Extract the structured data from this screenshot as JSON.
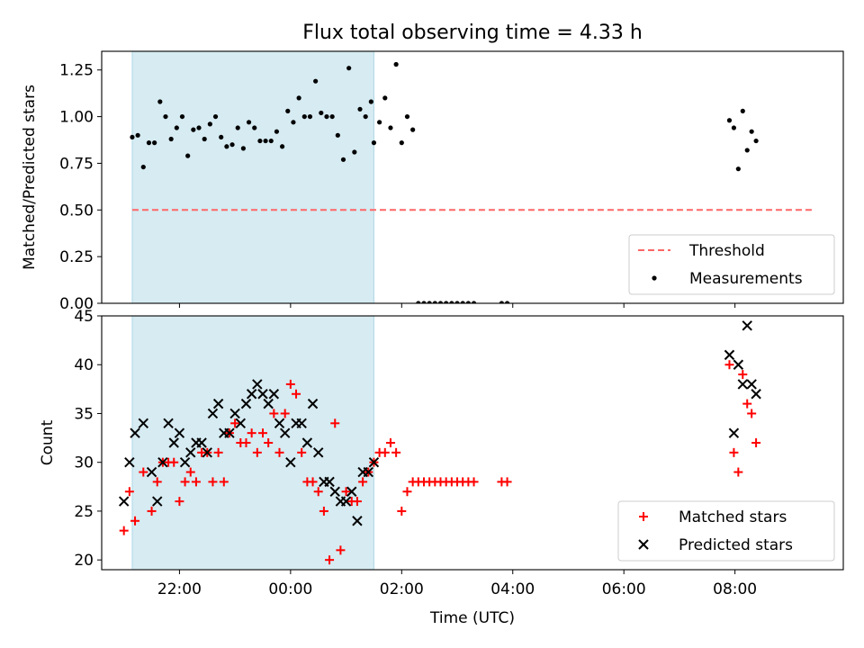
{
  "title": "Flux total observing time = 4.33 h",
  "xlabel": "Time (UTC)",
  "x_ticks": [
    "22:00",
    "00:00",
    "02:00",
    "04:00",
    "06:00",
    "08:00"
  ],
  "x_tick_hours": [
    22,
    24,
    26,
    28,
    30,
    32
  ],
  "colors": {
    "shade": "#add8e6",
    "threshold": "#ff6666",
    "matched": "#ff0000",
    "predicted": "#000000",
    "measurement": "#000000"
  },
  "chart_data": [
    {
      "type": "scatter",
      "ylabel": "Matched/Predicted stars",
      "xlim_hours": [
        20.6,
        33.95
      ],
      "ylim": [
        0,
        1.35
      ],
      "y_ticks": [
        "0.00",
        "0.25",
        "0.50",
        "0.75",
        "1.00",
        "1.25"
      ],
      "y_tick_values": [
        0,
        0.25,
        0.5,
        0.75,
        1.0,
        1.25
      ],
      "shaded_interval_hours": [
        21.15,
        25.5
      ],
      "threshold": {
        "name": "Threshold",
        "value": 0.5,
        "x_hours": [
          21.15,
          33.4
        ]
      },
      "legend": {
        "position": "lower right",
        "entries": [
          "Threshold",
          "Measurements"
        ]
      },
      "series": [
        {
          "name": "Measurements",
          "x_hours": [
            21.15,
            21.25,
            21.35,
            21.45,
            21.55,
            21.65,
            21.75,
            21.85,
            21.95,
            22.05,
            22.15,
            22.25,
            22.35,
            22.45,
            22.55,
            22.65,
            22.75,
            22.85,
            22.95,
            23.05,
            23.15,
            23.25,
            23.35,
            23.45,
            23.55,
            23.65,
            23.75,
            23.85,
            23.95,
            24.05,
            24.15,
            24.25,
            24.35,
            24.45,
            24.55,
            24.65,
            24.75,
            24.85,
            24.95,
            25.05,
            25.15,
            25.25,
            25.35,
            25.45,
            25.5,
            25.6,
            25.7,
            25.8,
            25.9,
            26.0,
            26.1,
            26.2,
            26.3,
            26.4,
            26.5,
            26.6,
            26.7,
            26.8,
            26.9,
            27.0,
            27.1,
            27.2,
            27.3,
            27.8,
            27.9,
            31.9,
            31.98,
            32.06,
            32.14,
            32.22,
            32.3,
            32.38
          ],
          "y": [
            0.89,
            0.9,
            0.73,
            0.86,
            0.86,
            1.08,
            1.0,
            0.88,
            0.94,
            1.0,
            0.79,
            0.93,
            0.94,
            0.88,
            0.96,
            1.0,
            0.89,
            0.84,
            0.85,
            0.94,
            0.83,
            0.97,
            0.94,
            0.87,
            0.87,
            0.87,
            0.92,
            0.84,
            1.03,
            0.97,
            1.1,
            1.0,
            1.0,
            1.19,
            1.02,
            1.0,
            1.0,
            0.9,
            0.77,
            1.26,
            0.81,
            1.04,
            1.0,
            1.08,
            0.86,
            0.97,
            1.1,
            0.94,
            1.28,
            0.86,
            1.0,
            0.93,
            0.0,
            0.0,
            0.0,
            0.0,
            0.0,
            0.0,
            0.0,
            0.0,
            0.0,
            0.0,
            0.0,
            0.0,
            0.0,
            0.98,
            0.94,
            0.72,
            1.03,
            0.82,
            0.92,
            0.87
          ]
        }
      ]
    },
    {
      "type": "scatter",
      "ylabel": "Count",
      "xlim_hours": [
        20.6,
        33.95
      ],
      "ylim": [
        19,
        45
      ],
      "y_ticks": [
        "20",
        "25",
        "30",
        "35",
        "40",
        "45"
      ],
      "y_tick_values": [
        20,
        25,
        30,
        35,
        40,
        45
      ],
      "shaded_interval_hours": [
        21.15,
        25.5
      ],
      "legend": {
        "position": "lower right",
        "entries": [
          "Matched stars",
          "Predicted stars"
        ]
      },
      "series": [
        {
          "name": "Matched stars",
          "x_hours": [
            21.0,
            21.1,
            21.2,
            21.35,
            21.5,
            21.6,
            21.7,
            21.8,
            21.9,
            22.0,
            22.1,
            22.2,
            22.3,
            22.4,
            22.5,
            22.6,
            22.7,
            22.8,
            22.9,
            23.0,
            23.1,
            23.2,
            23.3,
            23.4,
            23.5,
            23.6,
            23.7,
            23.8,
            23.9,
            24.0,
            24.1,
            24.2,
            24.3,
            24.4,
            24.5,
            24.6,
            24.7,
            24.8,
            24.9,
            25.0,
            25.1,
            25.2,
            25.3,
            25.4,
            25.5,
            25.6,
            25.7,
            25.8,
            25.9,
            26.0,
            26.1,
            26.2,
            26.3,
            26.4,
            26.5,
            26.6,
            26.7,
            26.8,
            26.9,
            27.0,
            27.1,
            27.2,
            27.3,
            27.8,
            27.9,
            31.9,
            31.98,
            32.06,
            32.14,
            32.22,
            32.3,
            32.38
          ],
          "y": [
            23,
            27,
            24,
            29,
            25,
            28,
            30,
            30,
            30,
            26,
            28,
            29,
            28,
            31,
            31,
            28,
            31,
            28,
            33,
            34,
            32,
            32,
            33,
            31,
            33,
            32,
            35,
            31,
            35,
            38,
            37,
            31,
            28,
            28,
            27,
            25,
            20,
            34,
            21,
            27,
            26,
            26,
            28,
            29,
            30,
            31,
            31,
            32,
            31,
            25,
            27,
            28,
            28,
            28,
            28,
            28,
            28,
            28,
            28,
            28,
            28,
            28,
            28,
            28,
            28,
            40,
            31,
            29,
            39,
            36,
            35,
            32
          ]
        },
        {
          "name": "Predicted stars",
          "x_hours": [
            21.0,
            21.1,
            21.2,
            21.35,
            21.5,
            21.6,
            21.7,
            21.8,
            21.9,
            22.0,
            22.1,
            22.2,
            22.3,
            22.4,
            22.5,
            22.6,
            22.7,
            22.8,
            22.9,
            23.0,
            23.1,
            23.2,
            23.3,
            23.4,
            23.5,
            23.6,
            23.7,
            23.8,
            23.9,
            24.0,
            24.1,
            24.2,
            24.3,
            24.4,
            24.5,
            24.6,
            24.7,
            24.8,
            24.9,
            25.0,
            25.1,
            25.2,
            25.3,
            25.4,
            25.5,
            31.9,
            31.98,
            32.06,
            32.14,
            32.22,
            32.3,
            32.38
          ],
          "y": [
            26,
            30,
            33,
            34,
            29,
            26,
            30,
            34,
            32,
            33,
            30,
            31,
            32,
            32,
            31,
            35,
            36,
            33,
            33,
            35,
            34,
            36,
            37,
            38,
            37,
            36,
            37,
            34,
            33,
            30,
            34,
            34,
            32,
            36,
            31,
            28,
            28,
            27,
            26,
            26,
            27,
            24,
            29,
            29,
            30,
            41,
            33,
            40,
            38,
            44,
            38,
            37
          ]
        }
      ]
    }
  ]
}
